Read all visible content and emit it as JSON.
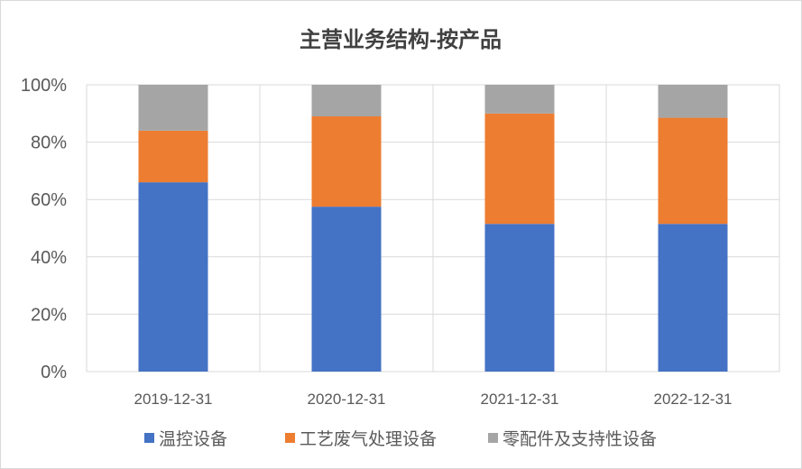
{
  "chart_data": {
    "type": "bar",
    "stacked": true,
    "title": "主营业务结构-按产品",
    "categories": [
      "2019-12-31",
      "2020-12-31",
      "2021-12-31",
      "2022-12-31"
    ],
    "series": [
      {
        "name": "温控设备",
        "color": "#4472C4",
        "values": [
          66,
          57.5,
          51.5,
          51.5
        ]
      },
      {
        "name": "工艺废气处理设备",
        "color": "#ED7D31",
        "values": [
          18,
          31.5,
          38.5,
          37
        ]
      },
      {
        "name": "零配件及支持性设备",
        "color": "#A5A5A5",
        "values": [
          16,
          11,
          10,
          11.5
        ]
      }
    ],
    "ylim": [
      0,
      100
    ],
    "yticks": [
      "0%",
      "20%",
      "40%",
      "60%",
      "80%",
      "100%"
    ],
    "grid": true,
    "legend": "bottom"
  }
}
